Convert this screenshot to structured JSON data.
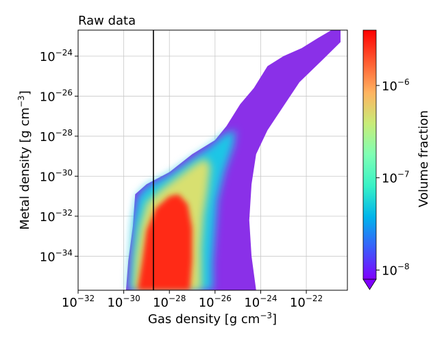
{
  "chart_data": {
    "type": "heatmap",
    "title": "Raw data",
    "xlabel": {
      "base": "Gas density [g cm",
      "exp": "−3",
      "close": "]"
    },
    "ylabel": {
      "base": "Metal density [g cm",
      "exp": "−3",
      "close": "]"
    },
    "x_scale": "log",
    "y_scale": "log",
    "xlim_log10": [
      -32,
      -20.2
    ],
    "ylim_log10": [
      -35.7,
      -22.7
    ],
    "x_ticks": [
      {
        "log10": -32,
        "base": "10",
        "exp": "−32"
      },
      {
        "log10": -30,
        "base": "10",
        "exp": "−30"
      },
      {
        "log10": -28,
        "base": "10",
        "exp": "−28"
      },
      {
        "log10": -26,
        "base": "10",
        "exp": "−26"
      },
      {
        "log10": -24,
        "base": "10",
        "exp": "−24"
      },
      {
        "log10": -22,
        "base": "10",
        "exp": "−22"
      }
    ],
    "y_ticks": [
      {
        "log10": -34,
        "base": "10",
        "exp": "−34"
      },
      {
        "log10": -32,
        "base": "10",
        "exp": "−32"
      },
      {
        "log10": -30,
        "base": "10",
        "exp": "−30"
      },
      {
        "log10": -28,
        "base": "10",
        "exp": "−28"
      },
      {
        "log10": -26,
        "base": "10",
        "exp": "−26"
      },
      {
        "log10": -24,
        "base": "10",
        "exp": "−24"
      }
    ],
    "grid": true,
    "vertical_line_log10_x": -28.7,
    "distribution": {
      "outer_envelope": [
        [
          -29.9,
          -35.7
        ],
        [
          -29.8,
          -34.2
        ],
        [
          -29.6,
          -32.5
        ],
        [
          -29.5,
          -30.9
        ],
        [
          -29.0,
          -30.4
        ],
        [
          -28.0,
          -29.8
        ],
        [
          -27.0,
          -28.9
        ],
        [
          -26.0,
          -28.2
        ],
        [
          -25.5,
          -27.5
        ],
        [
          -24.9,
          -26.4
        ],
        [
          -24.3,
          -25.6
        ],
        [
          -23.7,
          -24.5
        ],
        [
          -23.0,
          -24.0
        ],
        [
          -22.2,
          -23.6
        ],
        [
          -21.5,
          -23.1
        ],
        [
          -20.9,
          -22.7
        ],
        [
          -20.5,
          -22.7
        ],
        [
          -20.5,
          -23.3
        ],
        [
          -21.3,
          -24.2
        ],
        [
          -22.3,
          -25.3
        ],
        [
          -23.0,
          -26.5
        ],
        [
          -23.7,
          -27.7
        ],
        [
          -24.2,
          -28.9
        ],
        [
          -24.4,
          -30.4
        ],
        [
          -24.5,
          -32.2
        ],
        [
          -24.4,
          -34.0
        ],
        [
          -24.2,
          -35.7
        ]
      ],
      "cyan_region": [
        [
          -29.8,
          -35.7
        ],
        [
          -29.7,
          -34.0
        ],
        [
          -29.6,
          -32.3
        ],
        [
          -29.4,
          -31.0
        ],
        [
          -29.0,
          -30.5
        ],
        [
          -28.0,
          -29.9
        ],
        [
          -27.0,
          -29.1
        ],
        [
          -26.2,
          -28.5
        ],
        [
          -25.6,
          -27.9
        ],
        [
          -25.1,
          -27.7
        ],
        [
          -25.2,
          -28.5
        ],
        [
          -25.6,
          -29.8
        ],
        [
          -25.9,
          -31.2
        ],
        [
          -26.0,
          -32.8
        ],
        [
          -26.1,
          -34.3
        ],
        [
          -26.1,
          -35.7
        ]
      ],
      "yellow_region": [
        [
          -29.6,
          -35.7
        ],
        [
          -29.5,
          -34.0
        ],
        [
          -29.3,
          -32.5
        ],
        [
          -29.0,
          -31.3
        ],
        [
          -28.3,
          -30.6
        ],
        [
          -27.6,
          -30.0
        ],
        [
          -26.9,
          -29.4
        ],
        [
          -26.4,
          -29.1
        ],
        [
          -26.2,
          -29.5
        ],
        [
          -26.3,
          -30.6
        ],
        [
          -26.5,
          -32.0
        ],
        [
          -26.6,
          -33.6
        ],
        [
          -26.6,
          -35.7
        ]
      ],
      "red_region": [
        [
          -29.4,
          -35.7
        ],
        [
          -29.2,
          -34.3
        ],
        [
          -29.0,
          -32.7
        ],
        [
          -28.6,
          -31.6
        ],
        [
          -28.0,
          -31.0
        ],
        [
          -27.6,
          -30.9
        ],
        [
          -27.2,
          -31.4
        ],
        [
          -27.0,
          -32.6
        ],
        [
          -27.0,
          -34.2
        ],
        [
          -27.1,
          -35.7
        ]
      ]
    },
    "colorbar": {
      "label": "Volume fraction",
      "scale": "log",
      "range_log10": [
        -8.1,
        -5.4
      ],
      "ticks": [
        {
          "log10": -6,
          "base": "10",
          "exp": "−6"
        },
        {
          "log10": -7,
          "base": "10",
          "exp": "−7"
        },
        {
          "log10": -8,
          "base": "10",
          "exp": "−8"
        }
      ],
      "stops": [
        "#7f00ff",
        "#3b5cfb",
        "#00b4eb",
        "#38f2c6",
        "#7fffb4",
        "#c8ec78",
        "#ffb360",
        "#ff5a30",
        "#ff0000"
      ],
      "extend_min_color": "#7f00ff"
    }
  }
}
